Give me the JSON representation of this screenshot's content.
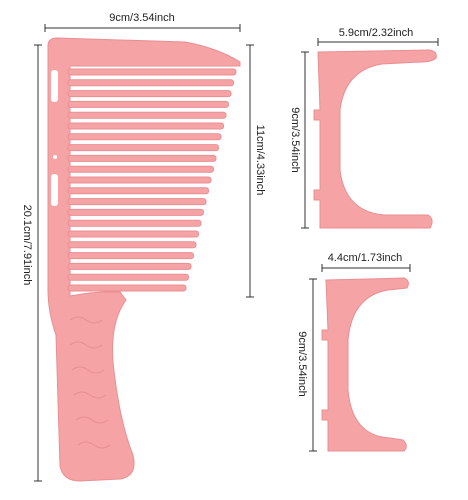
{
  "comb": {
    "width": "9cm/3.54inch",
    "teeth_length": "11cm/4.33inch",
    "total_length": "20.1cm/7.91inch"
  },
  "guide_large": {
    "width": "5.9cm/2.32inch",
    "height": "9cm/3.54inch"
  },
  "guide_small": {
    "width": "4.4cm/1.73inch",
    "height": "9cm/3.54inch"
  }
}
